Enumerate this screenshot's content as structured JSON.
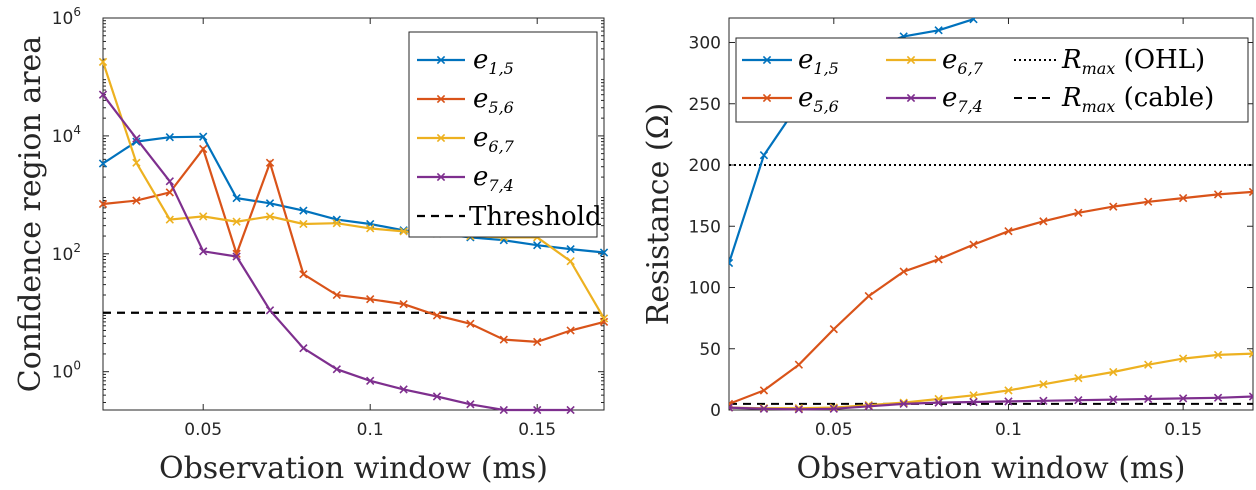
{
  "colors": {
    "e15": "#0072BD",
    "e56": "#D95319",
    "e67": "#EDB120",
    "e74": "#7E2F8E",
    "axis": "#262626",
    "threshold": "#000000"
  },
  "chart_data": [
    {
      "type": "line",
      "ylabel": "Confidence region area",
      "xlabel": "Observation window (ms)",
      "yscale": "log",
      "xlim": [
        0.02,
        0.17
      ],
      "ylim_log10": [
        -0.65,
        6
      ],
      "xticks": [
        0.05,
        0.1,
        0.15
      ],
      "xtick_labels": [
        "0.05",
        "0.1",
        "0.15"
      ],
      "yticks_log10": [
        0,
        2,
        4,
        6
      ],
      "x": [
        0.02,
        0.03,
        0.04,
        0.05,
        0.06,
        0.07,
        0.08,
        0.09,
        0.1,
        0.11,
        0.12,
        0.13,
        0.14,
        0.15,
        0.16,
        0.17
      ],
      "legend_location": "top-right",
      "series": [
        {
          "key": "e15",
          "name_base": "e",
          "name_sub": "1,5",
          "values": [
            3400,
            8000,
            9500,
            9700,
            880,
            720,
            540,
            380,
            320,
            250,
            220,
            190,
            170,
            140,
            120,
            105
          ]
        },
        {
          "key": "e56",
          "name_base": "e",
          "name_sub": "5,6",
          "values": [
            700,
            800,
            1100,
            6000,
            100,
            3500,
            45,
            20,
            17,
            14,
            9,
            6.5,
            3.5,
            3.2,
            5,
            7
          ]
        },
        {
          "key": "e67",
          "name_base": "e",
          "name_sub": "6,7",
          "values": [
            180000,
            3500,
            380,
            430,
            350,
            430,
            320,
            330,
            270,
            240,
            220,
            200,
            190,
            190,
            75,
            8
          ]
        },
        {
          "key": "e74",
          "name_base": "e",
          "name_sub": "7,4",
          "values": [
            50000,
            9000,
            1700,
            110,
            90,
            11,
            2.5,
            1.1,
            0.7,
            0.5,
            0.38,
            0.28,
            0.22,
            0.21,
            0.21,
            null
          ]
        }
      ],
      "threshold": {
        "name": "Threshold",
        "value": 10
      }
    },
    {
      "type": "line",
      "ylabel": "Resistance (Ω)",
      "xlabel": "Observation window (ms)",
      "xlim": [
        0.02,
        0.17
      ],
      "ylim": [
        0,
        320
      ],
      "xticks": [
        0.05,
        0.1,
        0.15
      ],
      "xtick_labels": [
        "0.05",
        "0.1",
        "0.15"
      ],
      "yticks": [
        0,
        50,
        100,
        150,
        200,
        250,
        300
      ],
      "x": [
        0.02,
        0.03,
        0.04,
        0.05,
        0.06,
        0.07,
        0.08,
        0.09,
        0.1,
        0.11,
        0.12,
        0.13,
        0.14,
        0.15,
        0.16,
        0.17
      ],
      "legend_location": "top",
      "series": [
        {
          "key": "e15",
          "name_base": "e",
          "name_sub": "1,5",
          "values": [
            120,
            208,
            250,
            280,
            295,
            305,
            310,
            319,
            null,
            null,
            null,
            null,
            null,
            null,
            null,
            null
          ]
        },
        {
          "key": "e56",
          "name_base": "e",
          "name_sub": "5,6",
          "values": [
            5,
            16,
            37,
            66,
            93,
            113,
            123,
            135,
            146,
            154,
            161,
            166,
            170,
            173,
            176,
            178
          ]
        },
        {
          "key": "e67",
          "name_base": "e",
          "name_sub": "6,7",
          "values": [
            2,
            1.5,
            1.5,
            2,
            4,
            6,
            9,
            12,
            16,
            21,
            26,
            31,
            37,
            42,
            45,
            46
          ]
        },
        {
          "key": "e74",
          "name_base": "e",
          "name_sub": "7,4",
          "values": [
            2,
            1,
            0.5,
            1,
            3,
            5,
            6,
            6.5,
            7,
            7.5,
            8,
            8.5,
            9,
            9.5,
            10,
            11
          ]
        }
      ],
      "reference_lines": [
        {
          "name_base": "R",
          "name_sub": "max",
          "name_suffix": " (OHL)",
          "value": 200,
          "style": "dotted"
        },
        {
          "name_base": "R",
          "name_sub": "max",
          "name_suffix": " (cable)",
          "value": 5,
          "style": "dashed"
        }
      ]
    }
  ]
}
